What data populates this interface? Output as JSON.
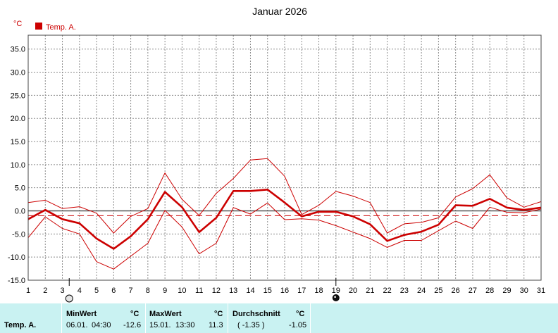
{
  "chart_data": {
    "type": "line",
    "title": "Januar 2026",
    "yunit": "°C",
    "legend": {
      "label": "Temp. A.",
      "color": "#cc0000",
      "position": "top-left"
    },
    "x": [
      1,
      2,
      3,
      4,
      5,
      6,
      7,
      8,
      9,
      10,
      11,
      12,
      13,
      14,
      15,
      16,
      17,
      18,
      19,
      20,
      21,
      22,
      23,
      24,
      25,
      26,
      27,
      28,
      29,
      30,
      31
    ],
    "ylim": [
      -15,
      38
    ],
    "yticks": [
      "-15.0",
      "-10.0",
      "-5.0",
      "0.0",
      "5.0",
      "10.0",
      "15.0",
      "20.0",
      "25.0",
      "30.0",
      "35.0"
    ],
    "grid": true,
    "series": [
      {
        "role": "max",
        "values": [
          1.8,
          2.3,
          0.5,
          0.9,
          -0.5,
          -4.8,
          -1.2,
          0.5,
          8.2,
          2.5,
          -1.0,
          3.8,
          7.0,
          11.0,
          11.3,
          7.5,
          -0.8,
          1.2,
          4.2,
          3.2,
          1.8,
          -4.8,
          -2.8,
          -2.5,
          -1.5,
          3.0,
          4.8,
          7.8,
          2.8,
          0.8,
          2.0
        ]
      },
      {
        "role": "avg",
        "values": [
          -1.8,
          0.2,
          -1.8,
          -2.7,
          -6.0,
          -8.2,
          -5.5,
          -1.8,
          4.1,
          0.8,
          -4.6,
          -1.5,
          4.3,
          4.3,
          4.6,
          1.8,
          -1.2,
          -0.2,
          -0.2,
          -1.2,
          -2.9,
          -6.5,
          -5.2,
          -4.5,
          -3.0,
          1.2,
          1.1,
          2.6,
          0.7,
          0.2,
          0.7
        ]
      },
      {
        "role": "min",
        "values": [
          -5.8,
          -1.3,
          -3.8,
          -5.0,
          -11.0,
          -12.6,
          -9.8,
          -7.0,
          0.1,
          -3.5,
          -9.3,
          -7.0,
          0.7,
          -0.7,
          1.7,
          -1.9,
          -1.7,
          -2.0,
          -3.2,
          -4.6,
          -6.0,
          -7.9,
          -6.4,
          -6.4,
          -4.3,
          -2.2,
          -3.8,
          0.8,
          -0.3,
          -0.4,
          0.4
        ]
      }
    ],
    "reference_lines": {
      "zero": 0,
      "average": -1.05
    },
    "markers": [
      {
        "x": 3.4,
        "style": "hollow"
      },
      {
        "x": 19,
        "style": "filled"
      }
    ]
  },
  "footer": {
    "series_name": "Temp. A.",
    "min": {
      "label": "MinWert",
      "unit": "°C",
      "date": "06.01.",
      "time": "04:30",
      "value": "-12.6"
    },
    "max": {
      "label": "MaxWert",
      "unit": "°C",
      "date": "15.01.",
      "time": "13:30",
      "value": "11.3"
    },
    "avg": {
      "label": "Durchschnitt",
      "unit": "°C",
      "extra": "( -1.35 )",
      "value": "-1.05"
    }
  },
  "colors": {
    "series": "#cc0000",
    "footer_bg": "#c9f2f2",
    "grid": "#8a8a8a"
  }
}
